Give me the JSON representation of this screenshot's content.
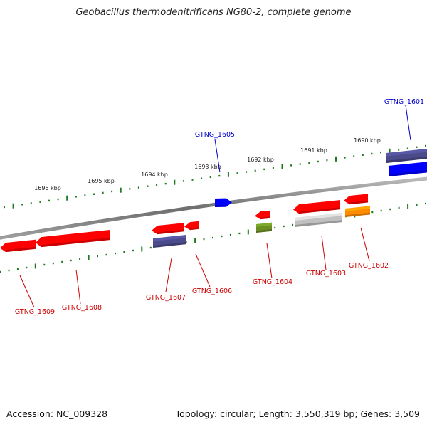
{
  "title": "Geobacillus thermodenitrificans NG80-2, complete genome",
  "footer": {
    "accession": "Accession: NC_009328",
    "topology": "Topology: circular; Length: 3,550,319 bp; Genes: 3,509"
  },
  "scale_labels": [
    "1696 kbp",
    "1695 kbp",
    "1694 kbp",
    "1693 kbp",
    "1692 kbp",
    "1691 kbp",
    "1690 kbp"
  ],
  "genes": [
    {
      "id": "GTNG_1601",
      "strand": "forward",
      "color": "#0000ff"
    },
    {
      "id": "GTNG_1602",
      "strand": "reverse",
      "color": "#ff8c00"
    },
    {
      "id": "GTNG_1603",
      "strand": "reverse",
      "color": "#c0c0c0"
    },
    {
      "id": "GTNG_1604",
      "strand": "reverse",
      "color": "#6b8e23"
    },
    {
      "id": "GTNG_1605",
      "strand": "forward",
      "color": "#0000ff"
    },
    {
      "id": "GTNG_1606",
      "strand": "reverse",
      "color": "#ff0000"
    },
    {
      "id": "GTNG_1607",
      "strand": "reverse",
      "color": "#4b4b8c"
    },
    {
      "id": "GTNG_1608",
      "strand": "reverse",
      "color": "#ff0000"
    },
    {
      "id": "GTNG_1609",
      "strand": "reverse",
      "color": "#ff0000"
    }
  ],
  "colors": {
    "backbone": "#808080",
    "scale_ticks": "#1f7a1f",
    "forward_label": "#0000cc",
    "reverse_label": "#cc0000"
  }
}
